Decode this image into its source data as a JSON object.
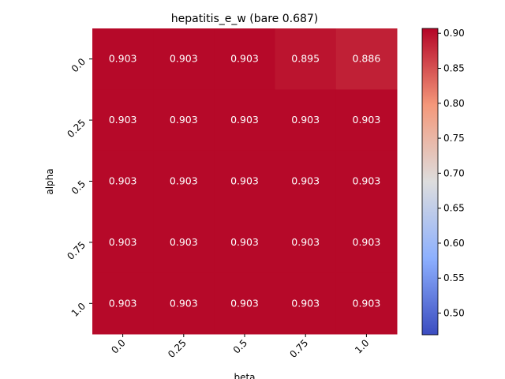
{
  "chart_data": {
    "type": "heatmap",
    "title": "hepatitis_e_w (bare 0.687)",
    "xlabel": "beta",
    "ylabel": "alpha",
    "x_categories": [
      "0.0",
      "0.25",
      "0.5",
      "0.75",
      "1.0"
    ],
    "y_categories": [
      "0.0",
      "0.25",
      "0.5",
      "0.75",
      "1.0"
    ],
    "values": [
      [
        0.903,
        0.903,
        0.903,
        0.895,
        0.886
      ],
      [
        0.903,
        0.903,
        0.903,
        0.903,
        0.903
      ],
      [
        0.903,
        0.903,
        0.903,
        0.903,
        0.903
      ],
      [
        0.903,
        0.903,
        0.903,
        0.903,
        0.903
      ],
      [
        0.903,
        0.903,
        0.903,
        0.903,
        0.903
      ]
    ],
    "annotations": [
      [
        "0.903",
        "0.903",
        "0.903",
        "0.895",
        "0.886"
      ],
      [
        "0.903",
        "0.903",
        "0.903",
        "0.903",
        "0.903"
      ],
      [
        "0.903",
        "0.903",
        "0.903",
        "0.903",
        "0.903"
      ],
      [
        "0.903",
        "0.903",
        "0.903",
        "0.903",
        "0.903"
      ],
      [
        "0.903",
        "0.903",
        "0.903",
        "0.903",
        "0.903"
      ]
    ],
    "colormap": "coolwarm",
    "color_range": [
      0.469,
      0.907
    ],
    "colorbar_ticks": [
      "0.50",
      "0.55",
      "0.60",
      "0.65",
      "0.70",
      "0.75",
      "0.80",
      "0.85",
      "0.90"
    ],
    "colorbar_tick_values": [
      0.5,
      0.55,
      0.6,
      0.65,
      0.7,
      0.75,
      0.8,
      0.85,
      0.9
    ],
    "annotation_color": "#ffffff",
    "grid": false
  }
}
